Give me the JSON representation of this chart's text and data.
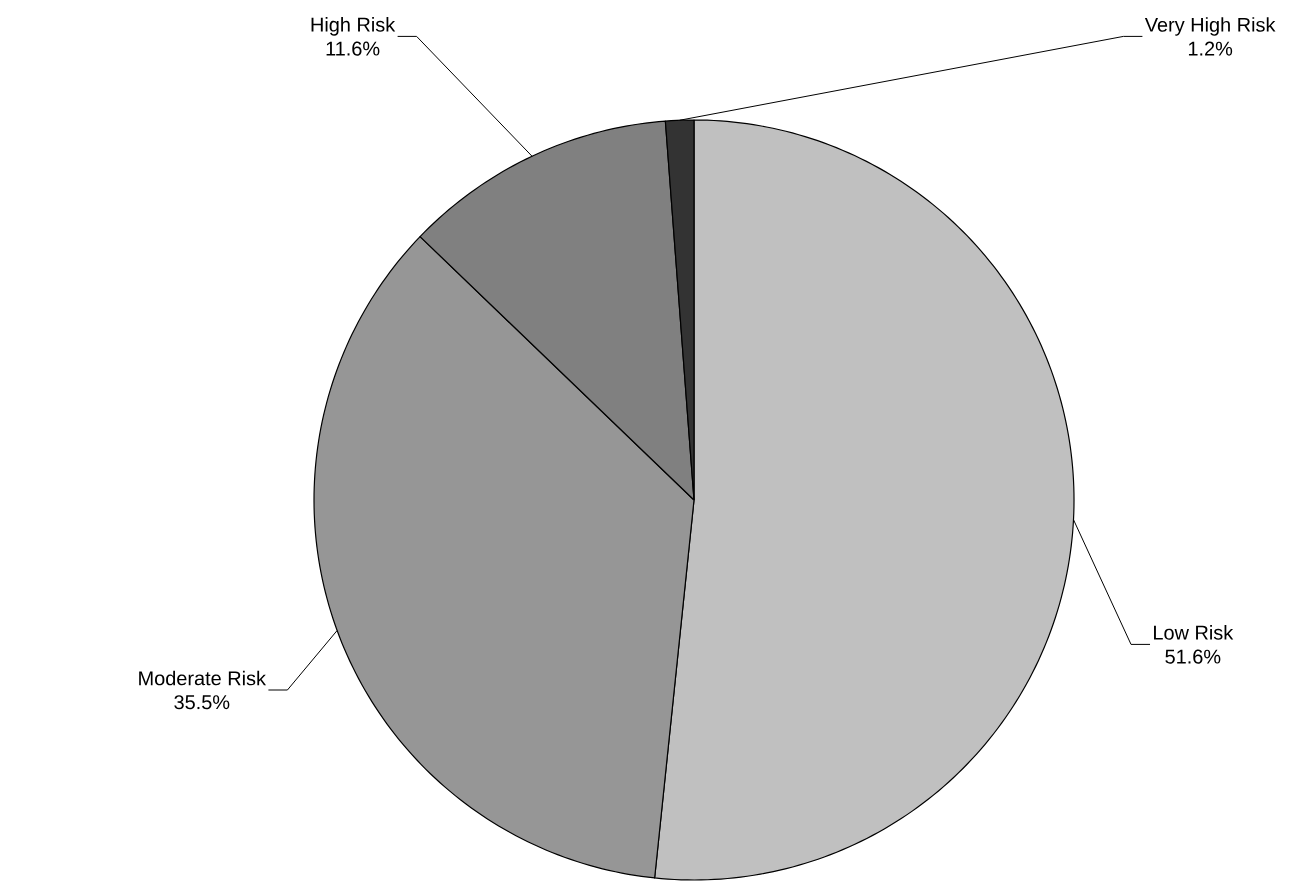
{
  "chart_data": {
    "type": "pie",
    "categories": [
      "Low Risk",
      "Moderate Risk",
      "High Risk",
      "Very High Risk"
    ],
    "values": [
      51.6,
      35.5,
      11.6,
      1.2
    ],
    "value_labels": [
      "51.6%",
      "35.5%",
      "11.6%",
      "1.2%"
    ],
    "colors": [
      "#c0c0c0",
      "#969696",
      "#808080",
      "#333333"
    ]
  }
}
